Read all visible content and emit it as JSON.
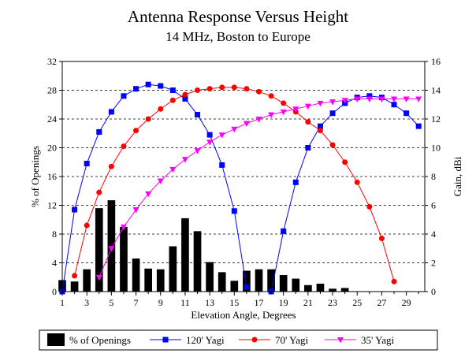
{
  "chart_data": {
    "type": "bar+line",
    "title": "Antenna Response Versus Height",
    "subtitle": "14 MHz, Boston to Europe",
    "xlabel": "Elevation Angle, Degrees",
    "ylabel_left": "% of Openings",
    "ylabel_right": "Gain, dBi",
    "xlim": [
      1,
      30
    ],
    "ylim_left": [
      0,
      32
    ],
    "ylim_right": [
      0,
      16
    ],
    "x_ticks": [
      "1",
      "3",
      "5",
      "7",
      "9",
      "11",
      "13",
      "15",
      "17",
      "19",
      "21",
      "23",
      "25",
      "27",
      "29"
    ],
    "y_left_ticks": [
      "0",
      "4",
      "8",
      "12",
      "16",
      "20",
      "24",
      "28",
      "32"
    ],
    "y_right_ticks": [
      "0",
      "2",
      "4",
      "6",
      "8",
      "10",
      "12",
      "14",
      "16"
    ],
    "grid": "horizontal dashed",
    "legend_position": "bottom",
    "bars": {
      "name": "% of Openings",
      "color": "#000000",
      "x": [
        1,
        2,
        3,
        4,
        5,
        6,
        7,
        8,
        9,
        10,
        11,
        12,
        13,
        14,
        15,
        16,
        17,
        18,
        19,
        20,
        21,
        22,
        23,
        24
      ],
      "values": [
        1.6,
        1.4,
        3.1,
        11.6,
        12.7,
        9.0,
        4.6,
        3.2,
        3.1,
        6.3,
        10.2,
        8.4,
        4.1,
        2.7,
        1.5,
        2.9,
        3.1,
        3.1,
        2.3,
        1.8,
        0.9,
        1.1,
        0.4,
        0.5
      ]
    },
    "series": [
      {
        "name": "120' Yagi",
        "color": "#0000ff",
        "marker": "square",
        "axis": "right",
        "x": [
          1,
          2,
          3,
          4,
          5,
          6,
          7,
          8,
          9,
          10,
          11,
          12,
          13,
          14,
          15,
          16,
          18,
          19,
          20,
          21,
          22,
          23,
          24,
          25,
          26,
          27,
          28,
          29,
          30
        ],
        "values": [
          0,
          5.7,
          8.9,
          11.1,
          12.5,
          13.6,
          14.1,
          14.4,
          14.3,
          14.0,
          13.4,
          12.3,
          10.9,
          8.8,
          5.6,
          0.3,
          0,
          4.2,
          7.6,
          10.0,
          11.5,
          12.4,
          13.1,
          13.5,
          13.6,
          13.5,
          13.0,
          12.4,
          11.5
        ]
      },
      {
        "name": "70' Yagi",
        "color": "#ff0000",
        "marker": "circle",
        "axis": "right",
        "x": [
          2,
          3,
          4,
          5,
          6,
          7,
          8,
          9,
          10,
          11,
          12,
          13,
          14,
          15,
          16,
          17,
          18,
          19,
          20,
          21,
          22,
          23,
          24,
          25,
          26,
          27,
          28
        ],
        "values": [
          1.1,
          4.6,
          6.9,
          8.7,
          10.1,
          11.2,
          12.0,
          12.7,
          13.3,
          13.7,
          14.0,
          14.1,
          14.2,
          14.2,
          14.1,
          13.9,
          13.6,
          13.1,
          12.5,
          11.8,
          11.2,
          10.2,
          9.0,
          7.6,
          5.9,
          3.7,
          0.7
        ]
      },
      {
        "name": "35' Yagi",
        "color": "#ff00ff",
        "marker": "triangle-down",
        "axis": "right",
        "x": [
          4,
          5,
          6,
          7,
          8,
          9,
          10,
          11,
          12,
          13,
          14,
          15,
          16,
          17,
          18,
          19,
          20,
          21,
          22,
          23,
          24,
          25,
          26,
          27,
          28,
          29,
          30
        ],
        "values": [
          1.0,
          3.0,
          4.5,
          5.7,
          6.8,
          7.7,
          8.5,
          9.2,
          9.8,
          10.4,
          10.9,
          11.3,
          11.7,
          12.0,
          12.3,
          12.5,
          12.7,
          12.9,
          13.1,
          13.2,
          13.3,
          13.4,
          13.4,
          13.4,
          13.4,
          13.4,
          13.4
        ]
      }
    ]
  }
}
